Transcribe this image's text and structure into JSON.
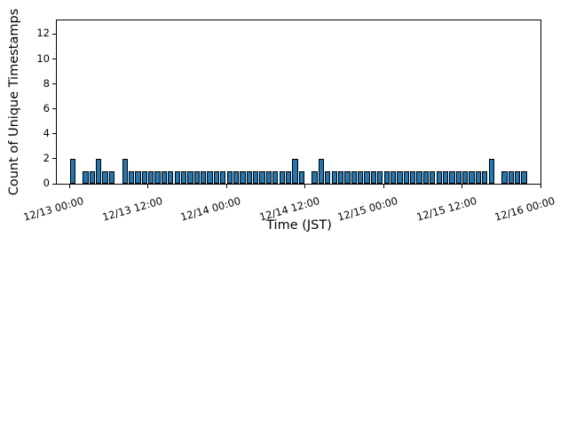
{
  "chart_data": {
    "type": "bar",
    "title": "",
    "xlabel": "Time (JST)",
    "ylabel": "Count of Unique Timestamps",
    "bin_hours": 1,
    "x_start_label": "12/13 00:00",
    "x_end_label": "12/16 00:00",
    "xtick_labels": [
      "12/13 00:00",
      "12/13 12:00",
      "12/14 00:00",
      "12/14 12:00",
      "12/15 00:00",
      "12/15 12:00",
      "12/16 00:00"
    ],
    "xtick_hours": [
      0,
      12,
      24,
      36,
      48,
      60,
      72
    ],
    "yticks": [
      0,
      2,
      4,
      6,
      8,
      10,
      12
    ],
    "ylim": [
      0,
      13.1
    ],
    "xlim_hours": [
      -1.9,
      72
    ],
    "grid": false,
    "legend": "none",
    "bar_color": "#1f77b4",
    "bar_edge_color": "#000000",
    "values": [
      2,
      0,
      1,
      1,
      2,
      1,
      1,
      0,
      2,
      1,
      1,
      1,
      1,
      1,
      1,
      1,
      1,
      1,
      1,
      1,
      1,
      1,
      1,
      1,
      1,
      1,
      1,
      1,
      1,
      1,
      1,
      1,
      1,
      1,
      2,
      1,
      0,
      1,
      2,
      1,
      1,
      1,
      1,
      1,
      1,
      1,
      1,
      1,
      1,
      1,
      1,
      1,
      1,
      1,
      1,
      1,
      1,
      1,
      1,
      1,
      1,
      1,
      1,
      1,
      2,
      0,
      1,
      1,
      1,
      1,
      0,
      0
    ]
  }
}
